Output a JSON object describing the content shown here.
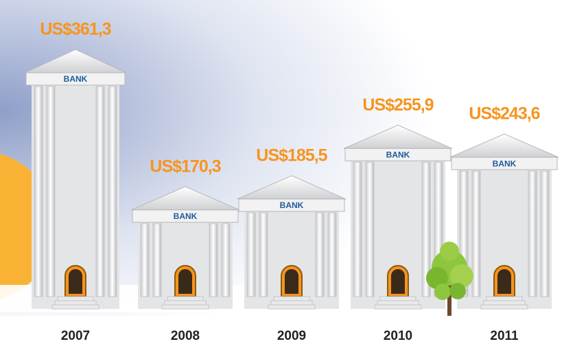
{
  "chart_data": {
    "type": "pictorial-bar",
    "categories": [
      "2007",
      "2008",
      "2009",
      "2010",
      "2011"
    ],
    "values": [
      361.3,
      170.3,
      185.5,
      255.9,
      243.6
    ],
    "value_labels": [
      "US$361,3",
      "US$170,3",
      "US$185,5",
      "US$255,9",
      "US$243,6"
    ],
    "building_label": "BANK",
    "color": "#e4e5e7",
    "label_color": "#f7941d"
  }
}
